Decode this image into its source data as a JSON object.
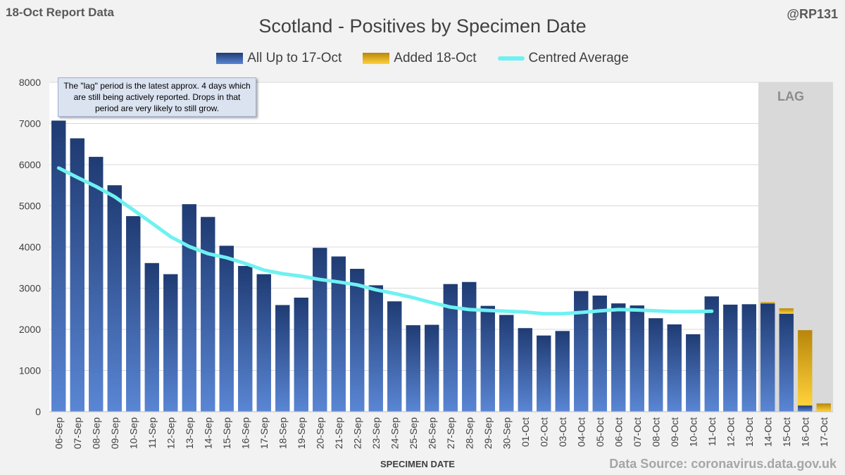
{
  "header": {
    "report_label": "18-Oct Report Data",
    "handle": "@RP131",
    "source": "Data Source: coronavirus.data.gov.uk"
  },
  "annotation": {
    "text": "The \"lag\" period is the latest approx. 4 days which are still being actively reported. Drops in that period are very likely to still grow."
  },
  "lag_label": "LAG",
  "colors": {
    "bar_blue_top": "#1f3b73",
    "bar_blue_bottom": "#5a86d4",
    "bar_gold_top": "#b8860b",
    "bar_gold_bottom": "#ffd23a",
    "average_line": "#6ff1f2",
    "lag_shade": "#d9d9d9"
  },
  "chart_data": {
    "type": "bar",
    "title": "Scotland - Positives by Specimen Date",
    "xlabel": "SPECIMEN DATE",
    "ylabel": "",
    "ylim": [
      0,
      8000
    ],
    "yticks": [
      0,
      1000,
      2000,
      3000,
      4000,
      5000,
      6000,
      7000,
      8000
    ],
    "categories": [
      "06-Sep",
      "07-Sep",
      "08-Sep",
      "09-Sep",
      "10-Sep",
      "11-Sep",
      "12-Sep",
      "13-Sep",
      "14-Sep",
      "15-Sep",
      "16-Sep",
      "17-Sep",
      "18-Sep",
      "19-Sep",
      "20-Sep",
      "21-Sep",
      "22-Sep",
      "23-Sep",
      "24-Sep",
      "25-Sep",
      "26-Sep",
      "27-Sep",
      "28-Sep",
      "29-Sep",
      "30-Sep",
      "01-Oct",
      "02-Oct",
      "03-Oct",
      "04-Oct",
      "05-Oct",
      "06-Oct",
      "07-Oct",
      "08-Oct",
      "09-Oct",
      "10-Oct",
      "11-Oct",
      "12-Oct",
      "13-Oct",
      "14-Oct",
      "15-Oct",
      "16-Oct",
      "17-Oct"
    ],
    "lag_start_category": "14-Oct",
    "series": [
      {
        "name": "All Up to 17-Oct",
        "kind": "bar-stacked",
        "values": [
          7070,
          6640,
          6190,
          5500,
          4750,
          3610,
          3340,
          5040,
          4730,
          4030,
          3540,
          3340,
          2590,
          2770,
          3980,
          3770,
          3470,
          3070,
          2680,
          2100,
          2110,
          3100,
          3150,
          2570,
          2350,
          2030,
          1850,
          1960,
          2930,
          2820,
          2630,
          2580,
          2270,
          2120,
          1880,
          2800,
          2600,
          2610,
          2630,
          2380,
          150,
          0
        ]
      },
      {
        "name": "Added 18-Oct",
        "kind": "bar-stacked",
        "values": [
          0,
          0,
          0,
          0,
          0,
          0,
          0,
          0,
          0,
          0,
          0,
          0,
          0,
          0,
          0,
          0,
          0,
          0,
          0,
          0,
          0,
          0,
          0,
          0,
          0,
          0,
          0,
          0,
          0,
          0,
          0,
          0,
          0,
          0,
          0,
          0,
          0,
          0,
          30,
          130,
          1830,
          200
        ]
      },
      {
        "name": "Centred Average",
        "kind": "line",
        "values": [
          5920,
          5690,
          5470,
          5220,
          4900,
          4580,
          4250,
          4010,
          3840,
          3740,
          3600,
          3440,
          3350,
          3290,
          3210,
          3150,
          3080,
          2960,
          2870,
          2770,
          2650,
          2540,
          2480,
          2460,
          2440,
          2420,
          2380,
          2380,
          2410,
          2450,
          2480,
          2470,
          2450,
          2430,
          2430,
          2440,
          null,
          null,
          null,
          null,
          null,
          null
        ]
      }
    ]
  }
}
